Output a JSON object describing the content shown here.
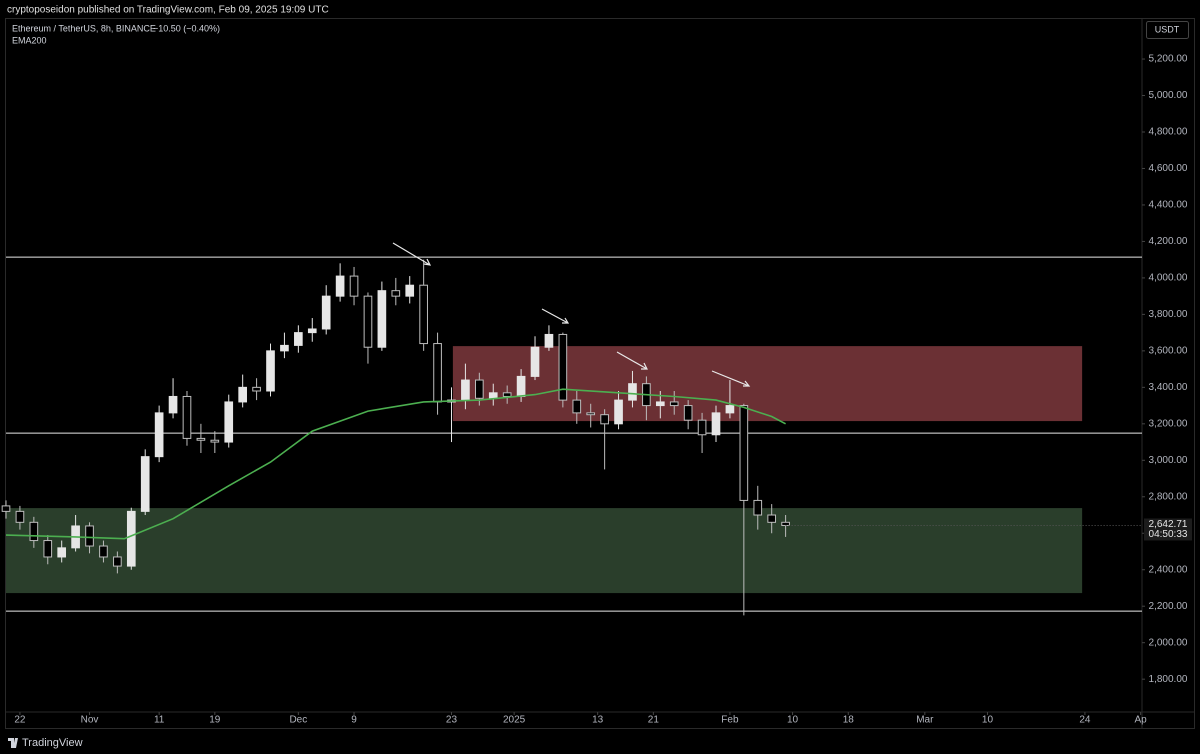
{
  "header": {
    "text": "cryptoposeidon published on TradingView.com, Feb 09, 2025 19:09 UTC"
  },
  "footer": {
    "brand": "TradingView"
  },
  "chart_data": {
    "type": "candlestick",
    "title": "Ethereum / TetherUS, 8h, BINANCE",
    "change": "−10.50 (−0.40%)",
    "currency": "USDT",
    "last_price_label": "2,642.71",
    "countdown": "04:50:33",
    "up_color": "#e6e6e6",
    "down_color": "#bdbdbd",
    "xlim": [
      -2,
      161.2
    ],
    "ylim": [
      1620,
      5425
    ],
    "xticks": [
      {
        "value": 0,
        "label": "22"
      },
      {
        "value": 10,
        "label": "Nov"
      },
      {
        "value": 20,
        "label": "11"
      },
      {
        "value": 28,
        "label": "19"
      },
      {
        "value": 40,
        "label": "Dec"
      },
      {
        "value": 48,
        "label": "9"
      },
      {
        "value": 62,
        "label": "23"
      },
      {
        "value": 71,
        "label": "2025"
      },
      {
        "value": 83,
        "label": "13"
      },
      {
        "value": 91,
        "label": "21"
      },
      {
        "value": 102,
        "label": "Feb"
      },
      {
        "value": 111,
        "label": "10"
      },
      {
        "value": 119,
        "label": "18"
      },
      {
        "value": 130,
        "label": "Mar"
      },
      {
        "value": 139,
        "label": "10"
      },
      {
        "value": 153,
        "label": "24"
      },
      {
        "value": 161,
        "label": "Ap"
      }
    ],
    "yticks": [
      {
        "value": 1800,
        "label": "1,800.00"
      },
      {
        "value": 2000,
        "label": "2,000.00"
      },
      {
        "value": 2200,
        "label": "2,200.00"
      },
      {
        "value": 2400,
        "label": "2,400.00"
      },
      {
        "value": 2600,
        "label": "2,600.00"
      },
      {
        "value": 2800,
        "label": "2,800.00"
      },
      {
        "value": 3000,
        "label": "3,000.00"
      },
      {
        "value": 3200,
        "label": "3,200.00"
      },
      {
        "value": 3400,
        "label": "3,400.00"
      },
      {
        "value": 3600,
        "label": "3,600.00"
      },
      {
        "value": 3800,
        "label": "3,800.00"
      },
      {
        "value": 4000,
        "label": "4,000.00"
      },
      {
        "value": 4200,
        "label": "4,200.00"
      },
      {
        "value": 4400,
        "label": "4,400.00"
      },
      {
        "value": 4600,
        "label": "4,600.00"
      },
      {
        "value": 4800,
        "label": "4,800.00"
      },
      {
        "value": 5000,
        "label": "5,000.00"
      },
      {
        "value": 5200,
        "label": "5,200.00"
      }
    ],
    "x": [
      -2,
      0,
      2,
      4,
      6,
      8,
      10,
      12,
      14,
      16,
      18,
      20,
      22,
      24,
      26,
      28,
      30,
      32,
      34,
      36,
      38,
      40,
      42,
      44,
      46,
      48,
      50,
      52,
      54,
      56,
      58,
      60,
      62,
      64,
      66,
      68,
      70,
      72,
      74,
      76,
      78,
      80,
      82,
      84,
      86,
      88,
      90,
      92,
      94,
      96,
      98,
      100,
      102,
      104,
      106,
      108,
      110
    ],
    "open": [
      2750,
      2720,
      2660,
      2560,
      2470,
      2520,
      2640,
      2530,
      2470,
      2420,
      2720,
      3020,
      3260,
      3350,
      3120,
      3110,
      3100,
      3320,
      3400,
      3380,
      3600,
      3630,
      3700,
      3720,
      3900,
      4010,
      3900,
      3620,
      3930,
      3900,
      3960,
      3640,
      3320,
      3330,
      3440,
      3340,
      3370,
      3350,
      3460,
      3620,
      3690,
      3330,
      3260,
      3250,
      3200,
      3330,
      3420,
      3300,
      3320,
      3300,
      3220,
      3140,
      3260,
      3300,
      2780,
      2700,
      2660
    ],
    "high": [
      2780,
      2750,
      2690,
      2590,
      2560,
      2700,
      2660,
      2560,
      2500,
      2740,
      3060,
      3300,
      3450,
      3380,
      3200,
      3160,
      3360,
      3470,
      3450,
      3640,
      3700,
      3740,
      3780,
      3960,
      4080,
      4060,
      3920,
      3980,
      4000,
      4010,
      4100,
      3700,
      3400,
      3530,
      3480,
      3420,
      3410,
      3500,
      3680,
      3740,
      3700,
      3380,
      3310,
      3280,
      3380,
      3490,
      3460,
      3380,
      3380,
      3330,
      3260,
      3300,
      3440,
      3310,
      2860,
      2760,
      2700
    ],
    "low": [
      2680,
      2620,
      2520,
      2430,
      2440,
      2500,
      2490,
      2440,
      2380,
      2400,
      2700,
      2990,
      3230,
      3080,
      3040,
      3040,
      3070,
      3290,
      3330,
      3350,
      3560,
      3590,
      3650,
      3690,
      3870,
      3850,
      3530,
      3600,
      3850,
      3860,
      3600,
      3250,
      3100,
      3280,
      3300,
      3300,
      3310,
      3320,
      3440,
      3600,
      3290,
      3200,
      3180,
      2950,
      3170,
      3290,
      3220,
      3230,
      3250,
      3170,
      3040,
      3100,
      3230,
      2150,
      2620,
      2600,
      2580
    ],
    "close": [
      2720,
      2660,
      2560,
      2470,
      2520,
      2640,
      2530,
      2470,
      2420,
      2720,
      3020,
      3260,
      3350,
      3120,
      3110,
      3100,
      3320,
      3400,
      3380,
      3600,
      3630,
      3700,
      3720,
      3900,
      4010,
      3900,
      3620,
      3930,
      3900,
      3960,
      3640,
      3320,
      3330,
      3440,
      3340,
      3370,
      3350,
      3460,
      3620,
      3690,
      3330,
      3260,
      3250,
      3200,
      3330,
      3420,
      3300,
      3320,
      3300,
      3220,
      3140,
      3260,
      3300,
      2780,
      2700,
      2660,
      2642.71
    ],
    "series": [
      {
        "name": "EMA200",
        "color": "#4caf50",
        "x": [
          -2,
          8,
          15,
          22,
          30,
          36,
          42,
          50,
          58,
          66,
          74,
          78,
          86,
          94,
          100,
          104,
          108,
          110
        ],
        "values": [
          2590,
          2580,
          2570,
          2680,
          2860,
          2990,
          3160,
          3270,
          3320,
          3330,
          3360,
          3390,
          3370,
          3350,
          3330,
          3290,
          3240,
          3200
        ]
      }
    ],
    "zones": [
      {
        "x": [
          62.2,
          152.6
        ],
        "y": [
          3626,
          3215
        ],
        "color": "#6b3034"
      },
      {
        "x": [
          -2,
          152.6
        ],
        "y": [
          2738,
          2272
        ],
        "color": "#2a3e2b"
      }
    ],
    "hlines": [
      4114,
      3149,
      2173
    ],
    "hline_color": "#e8e8e8"
  }
}
